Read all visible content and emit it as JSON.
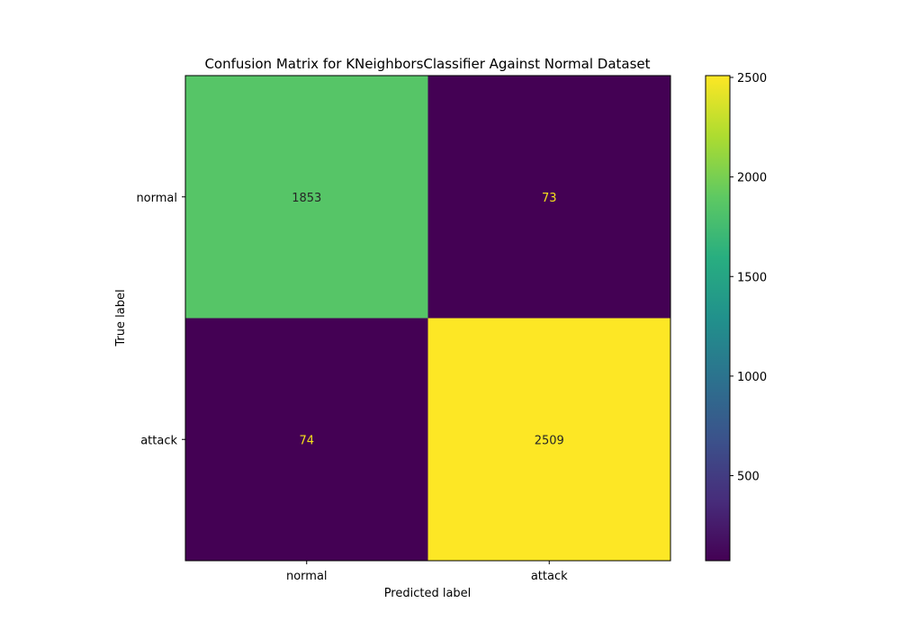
{
  "chart_data": {
    "type": "heatmap",
    "title": "Confusion Matrix for KNeighborsClassifier Against Normal Dataset",
    "xlabel": "Predicted label",
    "ylabel": "True label",
    "x_categories": [
      "normal",
      "attack"
    ],
    "y_categories": [
      "normal",
      "attack"
    ],
    "values": [
      [
        1853,
        73
      ],
      [
        74,
        2509
      ]
    ],
    "colormap": "viridis",
    "colorbar": {
      "ticks": [
        500,
        1000,
        1500,
        2000,
        2500
      ],
      "min": 73,
      "max": 2509
    },
    "text_colors": {
      "on_light": "#262626",
      "on_dark": "#f5e11b"
    }
  }
}
